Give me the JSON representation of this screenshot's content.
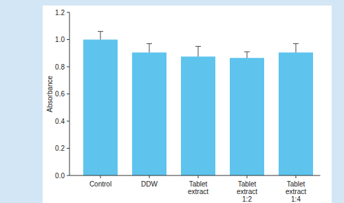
{
  "chart_data": {
    "type": "bar",
    "y_label": "Absorbance",
    "categories": [
      "Control",
      "DDW",
      "Tablet extract",
      "Tablet extract 1:2",
      "Tablet extract 1:4"
    ],
    "values": [
      1.0,
      0.905,
      0.875,
      0.865,
      0.905
    ],
    "errors": [
      0.06,
      0.065,
      0.075,
      0.045,
      0.065
    ],
    "color": "#5ec4ee",
    "ylim": [
      0,
      1.2
    ],
    "yticks": [
      {
        "value": 0,
        "label": "0.0"
      },
      0.2,
      0.4,
      0.6,
      0.8,
      {
        "value": 1,
        "label": "1.0"
      },
      1.2
    ],
    "grid": false
  }
}
